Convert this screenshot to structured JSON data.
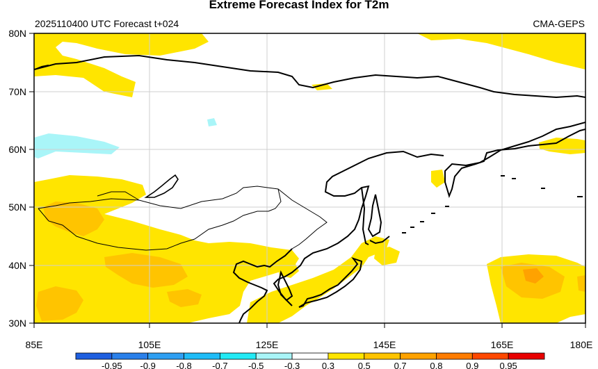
{
  "header": {
    "title": "Extreme Forecast Index for T2m",
    "subtitle_left": "2025110400 UTC Forecast t+024",
    "subtitle_right": "CMA-GEPS"
  },
  "map": {
    "lat_labels": [
      "80N",
      "70N",
      "60N",
      "50N",
      "40N",
      "30N"
    ],
    "lon_labels": [
      "85E",
      "105E",
      "125E",
      "145E",
      "165E",
      "180E"
    ]
  },
  "colorbar": {
    "labels": [
      "-0.95",
      "-0.9",
      "-0.8",
      "-0.7",
      "-0.5",
      "-0.3",
      "0.3",
      "0.5",
      "0.7",
      "0.8",
      "0.9",
      "0.95"
    ],
    "colors": [
      "#1f5fe0",
      "#2a80ea",
      "#2e9ff2",
      "#1fbcf7",
      "#22eaf5",
      "#a9f5f8",
      "#ffffff",
      "#ffe500",
      "#ffc400",
      "#ffa200",
      "#ff7c00",
      "#ff4800",
      "#e80000"
    ]
  }
}
